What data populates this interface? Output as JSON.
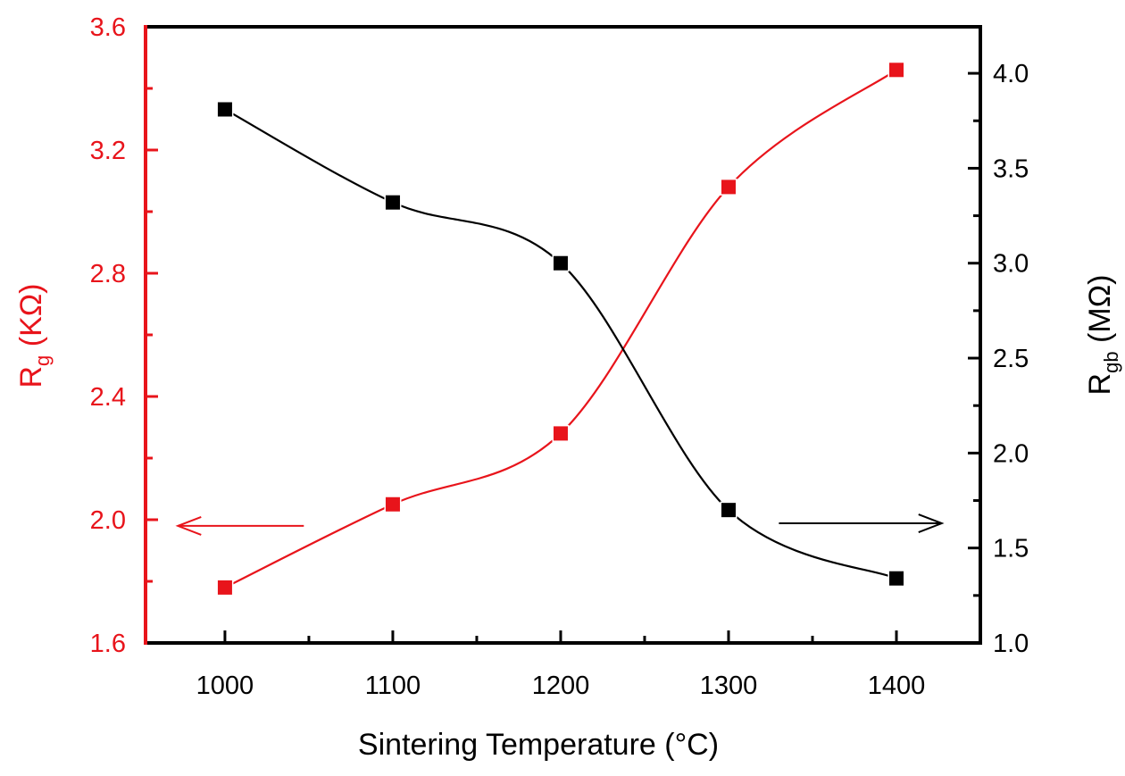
{
  "chart_data": {
    "type": "line",
    "title": "",
    "xlabel": "Sintering Temperature (°C)",
    "ylabel_left": {
      "main": "R",
      "sub": "g",
      "unit": " (KΩ)"
    },
    "ylabel_right": {
      "main": "R",
      "sub": "gb",
      "unit": " (MΩ)"
    },
    "x": [
      1000,
      1100,
      1200,
      1300,
      1400
    ],
    "xlim": [
      952.7,
      1450
    ],
    "xticks": [
      1000,
      1100,
      1200,
      1300,
      1400
    ],
    "xtick_labels": [
      "1000",
      "1100",
      "1200",
      "1300",
      "1400"
    ],
    "xminor": [
      1050,
      1150,
      1250,
      1350
    ],
    "ylim_left": [
      1.6,
      3.6
    ],
    "yticks_left": [
      1.6,
      2.0,
      2.4,
      2.8,
      3.2,
      3.6
    ],
    "ytick_labels_left": [
      "1.6",
      "2.0",
      "2.4",
      "2.8",
      "3.2",
      "3.6"
    ],
    "yminor_left": [
      1.8,
      2.2,
      2.6,
      3.0,
      3.4
    ],
    "ylim_right": [
      1.0,
      4.245
    ],
    "yticks_right": [
      1.0,
      1.5,
      2.0,
      2.5,
      3.0,
      3.5,
      4.0
    ],
    "ytick_labels_right": [
      "1.0",
      "1.5",
      "2.0",
      "2.5",
      "3.0",
      "3.5",
      "4.0"
    ],
    "yminor_right": [
      1.25,
      1.75,
      2.25,
      2.75,
      3.25,
      3.75
    ],
    "grid": false,
    "legend": "none",
    "series": [
      {
        "name": "Rg",
        "axis": "left",
        "color": "#e8141b",
        "marker": "square",
        "smooth": true,
        "values": [
          1.78,
          2.05,
          2.28,
          3.08,
          3.46
        ]
      },
      {
        "name": "Rgb",
        "axis": "right",
        "color": "#000000",
        "marker": "square",
        "smooth": true,
        "values": [
          3.81,
          3.32,
          3.0,
          1.7,
          1.34
        ]
      }
    ],
    "annotations": [
      {
        "type": "arrow",
        "direction": "left",
        "series": "Rg",
        "color": "#e8141b",
        "x_from": 1047,
        "x_to": 972,
        "y_axis": "left",
        "y": 1.98
      },
      {
        "type": "arrow",
        "direction": "right",
        "series": "Rgb",
        "color": "#000000",
        "x_from": 1330,
        "x_to": 1427,
        "y_axis": "right",
        "y": 1.63
      }
    ],
    "colors": {
      "left_axis": "#e8141b",
      "right_axis": "#000000",
      "frame": "#000000"
    }
  }
}
